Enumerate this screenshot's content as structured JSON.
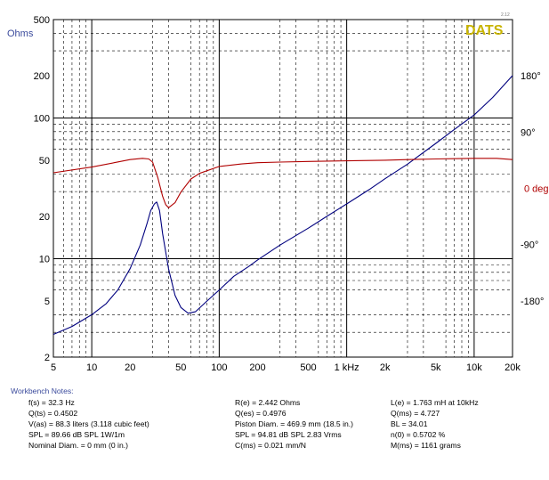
{
  "brand": {
    "label": "DATS",
    "version": "2.12",
    "color": "#c8b400"
  },
  "colors": {
    "impedance": "#00007f",
    "phase": "#b00000",
    "grid": "#000000",
    "axis_text": "#000000",
    "ohms_label": "#3a4a9c",
    "notes_title": "#3a4a9c"
  },
  "chart_data": {
    "type": "line",
    "x_scale": "log",
    "y_scale": "log",
    "xlim": [
      5,
      20000
    ],
    "ylim": [
      2,
      500
    ],
    "y2lim": [
      -270,
      270
    ],
    "ylabel": "Ohms",
    "x_ticks": [
      5,
      10,
      20,
      50,
      100,
      200,
      500,
      1000,
      2000,
      5000,
      10000,
      20000
    ],
    "x_tick_labels": [
      "5",
      "10",
      "20",
      "50",
      "100",
      "200",
      "500",
      "1 kHz",
      "2k",
      "5k",
      "10k",
      "20k"
    ],
    "y_ticks": [
      2,
      5,
      10,
      20,
      50,
      100,
      200,
      500
    ],
    "y_tick_labels": [
      "2",
      "5",
      "10",
      "20",
      "50",
      "100",
      "200",
      "500"
    ],
    "y2_ticks": [
      180,
      90,
      0,
      -90,
      -180
    ],
    "y2_tick_labels": [
      "180°",
      "90°",
      "0 deg",
      "-90°",
      "-180°"
    ],
    "grid": true,
    "series": [
      {
        "name": "impedance",
        "axis": "left",
        "x": [
          5,
          7,
          10,
          13,
          16,
          20,
          24,
          27,
          29,
          31,
          32.3,
          34,
          36,
          40,
          45,
          50,
          57,
          65,
          80,
          100,
          130,
          170,
          200,
          300,
          500,
          700,
          1000,
          1500,
          2000,
          3000,
          5000,
          7000,
          10000,
          14000,
          20000
        ],
        "y": [
          2.9,
          3.3,
          4.0,
          4.8,
          6.0,
          8.5,
          12.5,
          17.5,
          22.0,
          24.5,
          25.3,
          22.0,
          15.0,
          8.5,
          5.5,
          4.5,
          4.1,
          4.2,
          5.0,
          6.0,
          7.5,
          8.8,
          9.8,
          12.5,
          16.5,
          20.0,
          24.5,
          31.0,
          37.0,
          47.0,
          66.0,
          83.0,
          105.0,
          140.0,
          200.0
        ]
      },
      {
        "name": "phase",
        "axis": "right",
        "x": [
          5,
          10,
          15,
          20,
          25,
          28,
          30,
          33,
          36,
          38,
          40,
          45,
          50,
          60,
          70,
          100,
          150,
          200,
          300,
          500,
          1000,
          2000,
          3000,
          5000,
          10000,
          15000,
          20000
        ],
        "y": [
          25,
          34,
          41,
          46,
          48,
          47,
          42,
          17,
          -13,
          -26,
          -31,
          -23,
          -6,
          15,
          24,
          35,
          39,
          41,
          42,
          43,
          44,
          45,
          46,
          47,
          48,
          48,
          46
        ]
      }
    ]
  },
  "notes": {
    "title": "Workbench Notes:",
    "col1": [
      "f(s) = 32.3 Hz",
      "Q(ts) = 0.4502",
      "V(as) = 88.3 liters  (3.118 cubic feet)",
      "SPL = 89.66 dB SPL 1W/1m",
      "Nominal Diam. = 0 mm (0 in.)"
    ],
    "col2": [
      "R(e) = 2.442 Ohms",
      "Q(es) = 0.4976",
      "Piston Diam. = 469.9 mm (18.5 in.)",
      "SPL = 94.81 dB SPL 2.83 Vrms",
      "C(ms) = 0.021 mm/N"
    ],
    "col3": [
      "L(e) = 1.763 mH at 10kHz",
      "Q(ms) = 4.727",
      "BL = 34.01",
      "n(0) = 0.5702 %",
      "M(ms) = 1161 grams"
    ]
  }
}
